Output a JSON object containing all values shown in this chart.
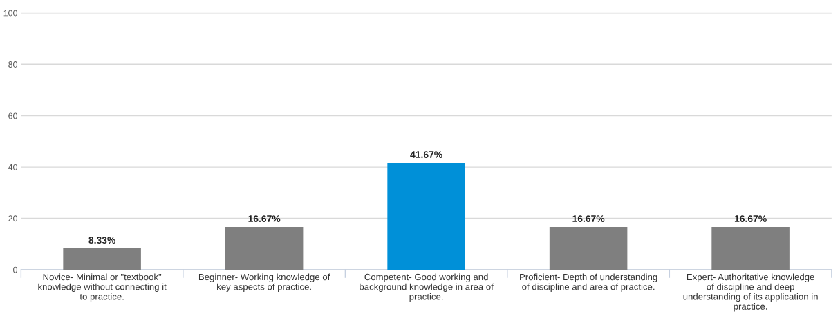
{
  "chart_data": {
    "type": "bar",
    "categories": [
      "Novice- Minimal or \"textbook\"\nknowledge without connecting it\nto practice.",
      "Beginner- Working knowledge of\nkey aspects of practice.",
      "Competent- Good working and\nbackground knowledge in area of\npractice.",
      "Proficient- Depth of understanding\nof discipline and area of practice.",
      "Expert- Authoritative knowledge\nof discipline and deep\nunderstanding of its application in\npractice."
    ],
    "values": [
      8.33,
      16.67,
      41.67,
      16.67,
      16.67
    ],
    "colors": [
      "#7f7f7f",
      "#7f7f7f",
      "#0090d8",
      "#7f7f7f",
      "#7f7f7f"
    ],
    "value_labels": [
      "8.33%",
      "16.67%",
      "41.67%",
      "16.67%",
      "16.67%"
    ],
    "ylim": [
      0,
      100
    ],
    "yticks": [
      0,
      20,
      40,
      60,
      80,
      100
    ],
    "grid": "y"
  }
}
